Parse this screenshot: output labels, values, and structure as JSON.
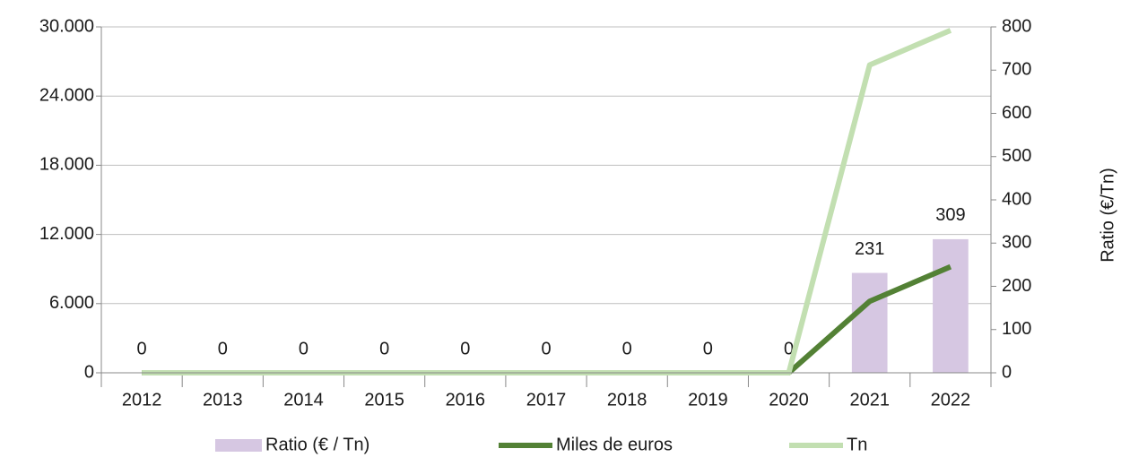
{
  "chart_data": {
    "type": "bar",
    "categories": [
      "2012",
      "2013",
      "2014",
      "2015",
      "2016",
      "2017",
      "2018",
      "2019",
      "2020",
      "2021",
      "2022"
    ],
    "series": [
      {
        "name": "Ratio (€ / Tn)",
        "type": "bar",
        "axis": "y2",
        "color": "#d6c7e2",
        "values": [
          0,
          0,
          0,
          0,
          0,
          0,
          0,
          0,
          0,
          231,
          309
        ]
      },
      {
        "name": "Miles de euros",
        "type": "line",
        "color": "#538135",
        "values": [
          0,
          0,
          0,
          0,
          0,
          0,
          0,
          0,
          0,
          6200,
          9200
        ]
      },
      {
        "name": "Tn",
        "type": "line",
        "color": "#c2dfb1",
        "values": [
          0,
          0,
          0,
          0,
          0,
          0,
          0,
          0,
          0,
          26700,
          29700
        ]
      }
    ],
    "ylim": [
      0,
      30000
    ],
    "yticks": [
      0,
      {
        "value": 6000,
        "label": "6.000"
      },
      {
        "value": 12000,
        "label": "12.000"
      },
      {
        "value": 18000,
        "label": "18.000"
      },
      {
        "value": 24000,
        "label": "24.000"
      },
      {
        "value": 30000,
        "label": "30.000"
      }
    ],
    "y2lim": [
      0,
      800
    ],
    "y2ticks": [
      0,
      100,
      200,
      300,
      400,
      500,
      600,
      700,
      800
    ],
    "y2label": "Ratio (€/Tn)",
    "grid": true
  }
}
